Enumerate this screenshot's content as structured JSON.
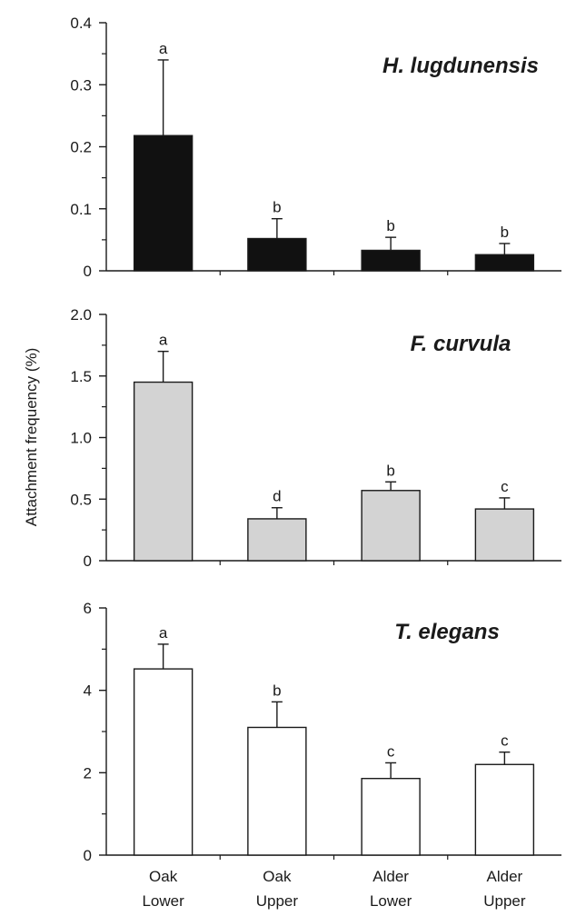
{
  "chart_data": [
    {
      "type": "bar",
      "title": "H. lugdunensis",
      "categories": [
        "Oak Lower",
        "Oak Upper",
        "Alder Lower",
        "Alder Upper"
      ],
      "values": [
        0.218,
        0.052,
        0.033,
        0.026
      ],
      "errors": [
        0.122,
        0.032,
        0.021,
        0.018
      ],
      "letters": [
        "a",
        "b",
        "b",
        "b"
      ],
      "ylim": [
        0,
        0.4
      ],
      "ticks": [
        0,
        0.1,
        0.2,
        0.3,
        0.4
      ],
      "tick_labels": [
        "0",
        "0.1",
        "0.2",
        "0.3",
        "0.4"
      ],
      "bar_color": "#111111"
    },
    {
      "type": "bar",
      "title": "F. curvula",
      "categories": [
        "Oak Lower",
        "Oak Upper",
        "Alder Lower",
        "Alder Upper"
      ],
      "values": [
        1.45,
        0.34,
        0.57,
        0.42
      ],
      "errors": [
        0.25,
        0.09,
        0.07,
        0.09
      ],
      "letters": [
        "a",
        "d",
        "b",
        "c"
      ],
      "ylim": [
        0,
        2.0
      ],
      "ticks": [
        0,
        0.5,
        1.0,
        1.5,
        2.0
      ],
      "tick_labels": [
        "0",
        "0.5",
        "1.0",
        "1.5",
        "2.0"
      ],
      "bar_color": "#d3d3d3"
    },
    {
      "type": "bar",
      "title": "T. elegans",
      "categories": [
        "Oak Lower",
        "Oak Upper",
        "Alder Lower",
        "Alder Upper"
      ],
      "values": [
        4.52,
        3.1,
        1.86,
        2.2
      ],
      "errors": [
        0.6,
        0.62,
        0.38,
        0.3
      ],
      "letters": [
        "a",
        "b",
        "c",
        "c"
      ],
      "ylim": [
        0,
        6
      ],
      "ticks": [
        0,
        2,
        4,
        6
      ],
      "tick_labels": [
        "0",
        "2",
        "4",
        "6"
      ],
      "bar_color": "#ffffff"
    }
  ],
  "y_axis_title": "Attachment frequency (%)",
  "x_labels": [
    [
      "Oak",
      "Lower"
    ],
    [
      "Oak",
      "Upper"
    ],
    [
      "Alder",
      "Lower"
    ],
    [
      "Alder",
      "Upper"
    ]
  ]
}
